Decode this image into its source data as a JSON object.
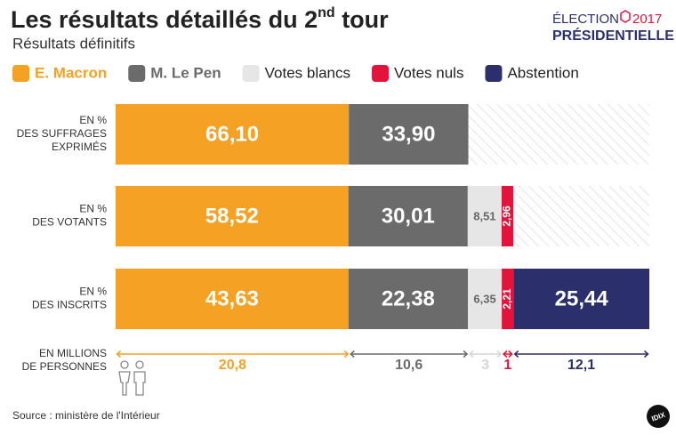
{
  "chart_data": {
    "type": "stacked-bar",
    "title": [
      "Les résultats détaillés du 2",
      "nd",
      " tour"
    ],
    "subtitle": "Résultats définitifs",
    "brand": {
      "line1": "ÉLECTION",
      "year": "2017",
      "line2": "PRÉSIDENTIELLE"
    },
    "categories": [
      [
        "EN %",
        "DES SUFFRAGES",
        "EXPRIMÉS"
      ],
      [
        "EN %",
        "DES VOTANTS"
      ],
      [
        "EN %",
        "DES INSCRITS"
      ]
    ],
    "series": [
      {
        "name": "E. Macron",
        "color": "#f4a124",
        "values": [
          66.1,
          58.52,
          43.63
        ],
        "value_labels": [
          "66,10",
          "58,52",
          "43,63"
        ],
        "millions": 20.8,
        "millions_label": "20,8"
      },
      {
        "name": "M. Le Pen",
        "color": "#6b6b6b",
        "values": [
          33.9,
          30.01,
          22.38
        ],
        "value_labels": [
          "33,90",
          "30,01",
          "22,38"
        ],
        "millions": 10.6,
        "millions_label": "10,6"
      },
      {
        "name": "Votes blancs",
        "color": "#e6e6e6",
        "values": [
          null,
          8.51,
          6.35
        ],
        "value_labels": [
          null,
          "8,51",
          "6,35"
        ],
        "millions": 3,
        "millions_label": "3"
      },
      {
        "name": "Votes nuls",
        "color": "#e3143c",
        "values": [
          null,
          2.96,
          2.21
        ],
        "value_labels": [
          null,
          "2,96",
          "2,21"
        ],
        "millions": 1,
        "millions_label": "1"
      },
      {
        "name": "Abstention",
        "color": "#2b2f6b",
        "values": [
          null,
          null,
          25.44
        ],
        "value_labels": [
          null,
          null,
          "25,44"
        ],
        "millions": 12.1,
        "millions_label": "12,1"
      }
    ],
    "millions_title": [
      "EN MILLIONS",
      "DE PERSONNES"
    ],
    "source": "Source : ministère de l'Intérieur",
    "badge": "IDIX"
  }
}
